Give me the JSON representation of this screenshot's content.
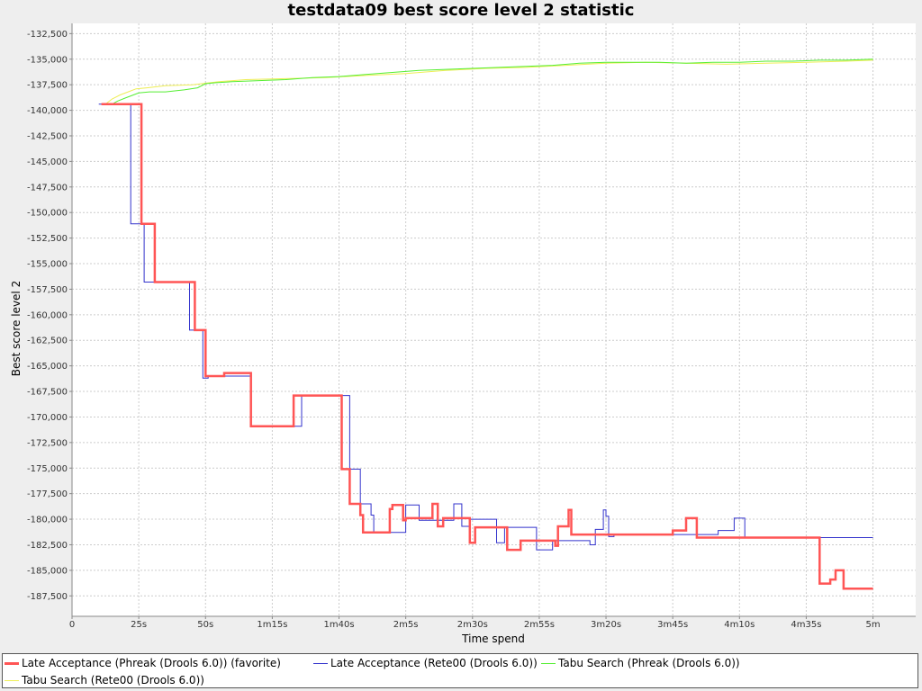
{
  "chart_data": {
    "type": "line",
    "title": "testdata09 best score level 2 statistic",
    "xlabel": "Time spend",
    "ylabel": "Best score level 2",
    "x_unit": "seconds",
    "xlim": [
      0,
      316
    ],
    "ylim": [
      -189500,
      -131500
    ],
    "grid": true,
    "legend_position": "bottom",
    "x_ticks": [
      {
        "value": 0,
        "label": "0"
      },
      {
        "value": 25,
        "label": "25s"
      },
      {
        "value": 50,
        "label": "50s"
      },
      {
        "value": 75,
        "label": "1m15s"
      },
      {
        "value": 100,
        "label": "1m40s"
      },
      {
        "value": 125,
        "label": "2m5s"
      },
      {
        "value": 150,
        "label": "2m30s"
      },
      {
        "value": 175,
        "label": "2m55s"
      },
      {
        "value": 200,
        "label": "3m20s"
      },
      {
        "value": 225,
        "label": "3m45s"
      },
      {
        "value": 250,
        "label": "4m10s"
      },
      {
        "value": 275,
        "label": "4m35s"
      },
      {
        "value": 300,
        "label": "5m"
      }
    ],
    "y_ticks": [
      {
        "value": -132500,
        "label": "-132,500"
      },
      {
        "value": -135000,
        "label": "-135,000"
      },
      {
        "value": -137500,
        "label": "-137,500"
      },
      {
        "value": -140000,
        "label": "-140,000"
      },
      {
        "value": -142500,
        "label": "-142,500"
      },
      {
        "value": -145000,
        "label": "-145,000"
      },
      {
        "value": -147500,
        "label": "-147,500"
      },
      {
        "value": -150000,
        "label": "-150,000"
      },
      {
        "value": -152500,
        "label": "-152,500"
      },
      {
        "value": -155000,
        "label": "-155,000"
      },
      {
        "value": -157500,
        "label": "-157,500"
      },
      {
        "value": -160000,
        "label": "-160,000"
      },
      {
        "value": -162500,
        "label": "-162,500"
      },
      {
        "value": -165000,
        "label": "-165,000"
      },
      {
        "value": -167500,
        "label": "-167,500"
      },
      {
        "value": -170000,
        "label": "-170,000"
      },
      {
        "value": -172500,
        "label": "-172,500"
      },
      {
        "value": -175000,
        "label": "-175,000"
      },
      {
        "value": -177500,
        "label": "-177,500"
      },
      {
        "value": -180000,
        "label": "-180,000"
      },
      {
        "value": -182500,
        "label": "-182,500"
      },
      {
        "value": -185000,
        "label": "-185,000"
      },
      {
        "value": -187500,
        "label": "-187,500"
      }
    ],
    "series": [
      {
        "name": "Late Acceptance (Phreak (Drools 6.0)) (favorite)",
        "color": "#ff5555",
        "width": 2.5,
        "points": [
          [
            11,
            -139400
          ],
          [
            26,
            -139400
          ],
          [
            26,
            -151100
          ],
          [
            31,
            -151100
          ],
          [
            31,
            -156800
          ],
          [
            46,
            -156800
          ],
          [
            46,
            -161500
          ],
          [
            50,
            -161500
          ],
          [
            50,
            -166000
          ],
          [
            57,
            -166000
          ],
          [
            57,
            -165700
          ],
          [
            67,
            -165700
          ],
          [
            67,
            -170900
          ],
          [
            83,
            -170900
          ],
          [
            83,
            -167900
          ],
          [
            101,
            -167900
          ],
          [
            101,
            -175100
          ],
          [
            104,
            -175100
          ],
          [
            104,
            -178500
          ],
          [
            108,
            -178500
          ],
          [
            108,
            -179600
          ],
          [
            109,
            -179600
          ],
          [
            109,
            -181300
          ],
          [
            119,
            -181300
          ],
          [
            119,
            -179000
          ],
          [
            120,
            -179000
          ],
          [
            120,
            -178600
          ],
          [
            124,
            -178600
          ],
          [
            124,
            -180100
          ],
          [
            125,
            -180100
          ],
          [
            125,
            -179900
          ],
          [
            135,
            -179900
          ],
          [
            135,
            -178500
          ],
          [
            137,
            -178500
          ],
          [
            137,
            -180700
          ],
          [
            139,
            -180700
          ],
          [
            139,
            -179900
          ],
          [
            149,
            -179900
          ],
          [
            149,
            -182300
          ],
          [
            151,
            -182300
          ],
          [
            151,
            -180800
          ],
          [
            163,
            -180800
          ],
          [
            163,
            -183000
          ],
          [
            168,
            -183000
          ],
          [
            168,
            -182100
          ],
          [
            181,
            -182100
          ],
          [
            181,
            -182600
          ],
          [
            182,
            -182600
          ],
          [
            182,
            -180700
          ],
          [
            186,
            -180700
          ],
          [
            186,
            -179100
          ],
          [
            187,
            -179100
          ],
          [
            187,
            -181500
          ],
          [
            190,
            -181500
          ],
          [
            190,
            -181500
          ],
          [
            225,
            -181500
          ],
          [
            225,
            -181100
          ],
          [
            230,
            -181100
          ],
          [
            230,
            -179900
          ],
          [
            234,
            -179900
          ],
          [
            234,
            -181800
          ],
          [
            280,
            -181800
          ],
          [
            280,
            -186300
          ],
          [
            284,
            -186300
          ],
          [
            284,
            -185900
          ],
          [
            286,
            -185900
          ],
          [
            286,
            -185000
          ],
          [
            289,
            -185000
          ],
          [
            289,
            -186800
          ],
          [
            300,
            -186800
          ]
        ]
      },
      {
        "name": "Late Acceptance (Rete00 (Drools 6.0))",
        "color": "#3333cc",
        "width": 1,
        "points": [
          [
            10,
            -139400
          ],
          [
            22,
            -139400
          ],
          [
            22,
            -151100
          ],
          [
            27,
            -151100
          ],
          [
            27,
            -156800
          ],
          [
            44,
            -156800
          ],
          [
            44,
            -161500
          ],
          [
            49,
            -161500
          ],
          [
            49,
            -166200
          ],
          [
            51,
            -166200
          ],
          [
            51,
            -166000
          ],
          [
            67,
            -166000
          ],
          [
            67,
            -170900
          ],
          [
            86,
            -170900
          ],
          [
            86,
            -167900
          ],
          [
            104,
            -167900
          ],
          [
            104,
            -175100
          ],
          [
            108,
            -175100
          ],
          [
            108,
            -178500
          ],
          [
            112,
            -178500
          ],
          [
            112,
            -179600
          ],
          [
            113,
            -179600
          ],
          [
            113,
            -181300
          ],
          [
            125,
            -181300
          ],
          [
            125,
            -178600
          ],
          [
            130,
            -178600
          ],
          [
            130,
            -180100
          ],
          [
            143,
            -180100
          ],
          [
            143,
            -178500
          ],
          [
            146,
            -178500
          ],
          [
            146,
            -180700
          ],
          [
            149,
            -180700
          ],
          [
            149,
            -180000
          ],
          [
            159,
            -180000
          ],
          [
            159,
            -182300
          ],
          [
            162,
            -182300
          ],
          [
            162,
            -180800
          ],
          [
            174,
            -180800
          ],
          [
            174,
            -183000
          ],
          [
            180,
            -183000
          ],
          [
            180,
            -182100
          ],
          [
            194,
            -182100
          ],
          [
            194,
            -182500
          ],
          [
            196,
            -182500
          ],
          [
            196,
            -181000
          ],
          [
            199,
            -181000
          ],
          [
            199,
            -179100
          ],
          [
            200,
            -179100
          ],
          [
            200,
            -179700
          ],
          [
            201,
            -179700
          ],
          [
            201,
            -181700
          ],
          [
            203,
            -181700
          ],
          [
            203,
            -181500
          ],
          [
            225,
            -181500
          ],
          [
            225,
            -181500
          ],
          [
            242,
            -181500
          ],
          [
            242,
            -181100
          ],
          [
            248,
            -181100
          ],
          [
            248,
            -179900
          ],
          [
            252,
            -179900
          ],
          [
            252,
            -181800
          ],
          [
            300,
            -181800
          ]
        ]
      },
      {
        "name": "Tabu Search (Phreak (Drools 6.0))",
        "color": "#55ee33",
        "width": 1,
        "points": [
          [
            15,
            -139400
          ],
          [
            17,
            -139100
          ],
          [
            20,
            -138800
          ],
          [
            23,
            -138500
          ],
          [
            25,
            -138300
          ],
          [
            29,
            -138200
          ],
          [
            35,
            -138200
          ],
          [
            42,
            -138000
          ],
          [
            47,
            -137800
          ],
          [
            50,
            -137400
          ],
          [
            54,
            -137300
          ],
          [
            60,
            -137200
          ],
          [
            70,
            -137100
          ],
          [
            80,
            -137000
          ],
          [
            90,
            -136800
          ],
          [
            100,
            -136700
          ],
          [
            110,
            -136500
          ],
          [
            120,
            -136300
          ],
          [
            130,
            -136100
          ],
          [
            140,
            -136000
          ],
          [
            150,
            -135900
          ],
          [
            160,
            -135800
          ],
          [
            170,
            -135700
          ],
          [
            180,
            -135600
          ],
          [
            190,
            -135400
          ],
          [
            200,
            -135300
          ],
          [
            210,
            -135300
          ],
          [
            220,
            -135300
          ],
          [
            230,
            -135400
          ],
          [
            240,
            -135300
          ],
          [
            250,
            -135300
          ],
          [
            260,
            -135200
          ],
          [
            270,
            -135200
          ],
          [
            280,
            -135100
          ],
          [
            290,
            -135100
          ],
          [
            300,
            -135000
          ]
        ]
      },
      {
        "name": "Tabu Search (Rete00 (Drools 6.0))",
        "color": "#eeee55",
        "width": 1,
        "points": [
          [
            13,
            -139300
          ],
          [
            15,
            -138900
          ],
          [
            18,
            -138500
          ],
          [
            21,
            -138200
          ],
          [
            24,
            -137900
          ],
          [
            28,
            -137800
          ],
          [
            35,
            -137600
          ],
          [
            45,
            -137500
          ],
          [
            55,
            -137200
          ],
          [
            65,
            -137000
          ],
          [
            80,
            -136900
          ],
          [
            95,
            -136800
          ],
          [
            110,
            -136600
          ],
          [
            125,
            -136400
          ],
          [
            140,
            -136100
          ],
          [
            155,
            -135900
          ],
          [
            170,
            -135800
          ],
          [
            185,
            -135600
          ],
          [
            200,
            -135400
          ],
          [
            215,
            -135300
          ],
          [
            230,
            -135400
          ],
          [
            245,
            -135500
          ],
          [
            260,
            -135400
          ],
          [
            275,
            -135300
          ],
          [
            290,
            -135200
          ],
          [
            300,
            -135100
          ]
        ]
      }
    ]
  }
}
